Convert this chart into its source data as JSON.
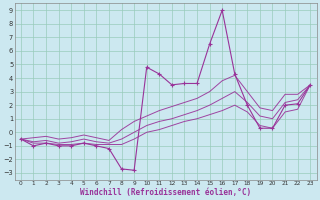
{
  "xlabel": "Windchill (Refroidissement éolien,°C)",
  "xlim": [
    -0.5,
    23.5
  ],
  "ylim": [
    -3.5,
    9.5
  ],
  "yticks": [
    -3,
    -2,
    -1,
    0,
    1,
    2,
    3,
    4,
    5,
    6,
    7,
    8,
    9
  ],
  "xticks": [
    0,
    1,
    2,
    3,
    4,
    5,
    6,
    7,
    8,
    9,
    10,
    11,
    12,
    13,
    14,
    15,
    16,
    17,
    18,
    19,
    20,
    21,
    22,
    23
  ],
  "bg_color": "#cce8f0",
  "line_color": "#993399",
  "grid_color": "#99ccbb",
  "series_main": {
    "x": [
      0,
      1,
      2,
      3,
      4,
      5,
      6,
      7,
      8,
      9,
      10,
      11,
      12,
      13,
      14,
      15,
      16,
      17,
      18,
      19,
      20,
      21,
      22,
      23
    ],
    "y": [
      -0.5,
      -1.0,
      -0.8,
      -1.0,
      -1.0,
      -0.8,
      -1.0,
      -1.2,
      -2.7,
      -2.8,
      4.8,
      4.3,
      3.5,
      3.6,
      3.6,
      6.5,
      9.0,
      4.3,
      2.0,
      0.3,
      0.3,
      2.0,
      2.1,
      3.5
    ]
  },
  "series_smooth": [
    {
      "x": [
        0,
        1,
        2,
        3,
        4,
        5,
        6,
        7,
        8,
        9,
        10,
        11,
        12,
        13,
        14,
        15,
        16,
        17,
        18,
        19,
        20,
        21,
        22,
        23
      ],
      "y": [
        -0.5,
        -0.8,
        -0.8,
        -0.9,
        -0.9,
        -0.8,
        -0.9,
        -0.9,
        -0.9,
        -0.5,
        0.0,
        0.2,
        0.5,
        0.8,
        1.0,
        1.3,
        1.6,
        2.0,
        1.5,
        0.5,
        0.3,
        1.5,
        1.7,
        3.5
      ]
    },
    {
      "x": [
        0,
        1,
        2,
        3,
        4,
        5,
        6,
        7,
        8,
        9,
        10,
        11,
        12,
        13,
        14,
        15,
        16,
        17,
        18,
        19,
        20,
        21,
        22,
        23
      ],
      "y": [
        -0.5,
        -0.7,
        -0.6,
        -0.8,
        -0.7,
        -0.5,
        -0.7,
        -0.8,
        -0.5,
        0.0,
        0.5,
        0.8,
        1.0,
        1.3,
        1.6,
        2.0,
        2.5,
        3.0,
        2.2,
        1.2,
        1.0,
        2.2,
        2.4,
        3.5
      ]
    },
    {
      "x": [
        0,
        1,
        2,
        3,
        4,
        5,
        6,
        7,
        8,
        9,
        10,
        11,
        12,
        13,
        14,
        15,
        16,
        17,
        18,
        19,
        20,
        21,
        22,
        23
      ],
      "y": [
        -0.5,
        -0.4,
        -0.3,
        -0.5,
        -0.4,
        -0.2,
        -0.4,
        -0.6,
        0.2,
        0.8,
        1.2,
        1.6,
        1.9,
        2.2,
        2.5,
        3.0,
        3.8,
        4.2,
        3.0,
        1.8,
        1.6,
        2.8,
        2.8,
        3.5
      ]
    }
  ]
}
